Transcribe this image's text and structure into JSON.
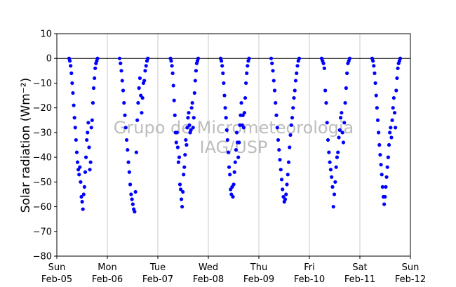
{
  "chart_data": {
    "type": "scatter",
    "ylabel": "Solar radiation (Wm⁻²)",
    "ylim": [
      -80,
      10
    ],
    "yticks": [
      10,
      0,
      -10,
      -20,
      -30,
      -40,
      -50,
      -60,
      -70,
      -80
    ],
    "xlim": [
      "2017-02-05 00:00",
      "2017-02-12 00:00"
    ],
    "xticks": [
      {
        "day": "Sun",
        "date": "Feb-05"
      },
      {
        "day": "Mon",
        "date": "Feb-06"
      },
      {
        "day": "Tue",
        "date": "Feb-07"
      },
      {
        "day": "Wed",
        "date": "Feb-08"
      },
      {
        "day": "Thu",
        "date": "Feb-09"
      },
      {
        "day": "Fri",
        "date": "Feb-10"
      },
      {
        "day": "Sat",
        "date": "Feb-11"
      },
      {
        "day": "Sun",
        "date": "Feb-12"
      }
    ],
    "grid": "vertical",
    "reference_line": 0,
    "marker_color": "#0000ff",
    "days": [
      {
        "date": "Feb-05",
        "sunrise": "05:50",
        "sunset": "19:20",
        "trough_time": "12:20",
        "trough": -61,
        "values": [
          0,
          -1,
          -3,
          -6,
          -10,
          -14,
          -19,
          -24,
          -28,
          -33,
          -38,
          -42,
          -45,
          -47,
          -44,
          -50,
          -56,
          -58,
          -61,
          -55,
          -52,
          -46,
          -40,
          -33,
          -30,
          -26,
          -36,
          -45,
          -42,
          -28,
          -25,
          -18,
          -12,
          -8,
          -4,
          -2,
          -1,
          0
        ]
      },
      {
        "date": "Feb-06",
        "sunrise": "05:50",
        "sunset": "19:15",
        "trough_time": "13:10",
        "trough": -62,
        "values": [
          0,
          -2,
          -5,
          -9,
          -13,
          -18,
          -23,
          -28,
          -33,
          -37,
          -42,
          -46,
          -51,
          -55,
          -57,
          -59,
          -61,
          -62,
          -54,
          -38,
          -25,
          -18,
          -12,
          -8,
          -15,
          -22,
          -16,
          -10,
          -9,
          -5,
          -3,
          -1,
          0
        ]
      },
      {
        "date": "Feb-07",
        "sunrise": "06:00",
        "sunset": "19:10",
        "trough_time": "12:40",
        "trough": -60,
        "values": [
          0,
          -1,
          -3,
          -6,
          -11,
          -17,
          -23,
          -30,
          -34,
          -30,
          -36,
          -42,
          -40,
          -51,
          -53,
          -57,
          -60,
          -54,
          -47,
          -44,
          -39,
          -33,
          -35,
          -28,
          -24,
          -22,
          -27,
          -30,
          -29,
          -20,
          -18,
          -28,
          -24,
          -14,
          -9,
          -5,
          -2,
          -1,
          0
        ]
      },
      {
        "date": "Feb-08",
        "sunrise": "05:50",
        "sunset": "19:20",
        "trough_time": "10:50",
        "trough": -56,
        "values": [
          0,
          -1,
          -3,
          -6,
          -10,
          -15,
          -20,
          -24,
          -29,
          -33,
          -38,
          -44,
          -47,
          -53,
          -55,
          -52,
          -56,
          -51,
          -46,
          -42,
          -37,
          -30,
          -34,
          -40,
          -34,
          -27,
          -23,
          -18,
          -27,
          -23,
          -28,
          -22,
          -16,
          -10,
          -6,
          -3,
          -1,
          0
        ]
      },
      {
        "date": "Feb-09",
        "sunrise": "05:50",
        "sunset": "19:10",
        "trough_time": "13:00",
        "trough": -58,
        "values": [
          0,
          -2,
          -5,
          -9,
          -13,
          -18,
          -23,
          -28,
          -33,
          -37,
          -41,
          -45,
          -49,
          -53,
          -56,
          -58,
          -57,
          -55,
          -51,
          -47,
          -42,
          -36,
          -31,
          -27,
          -24,
          -20,
          -16,
          -13,
          -9,
          -6,
          -3,
          -1,
          0
        ]
      },
      {
        "date": "Feb-10",
        "sunrise": "05:50",
        "sunset": "19:10",
        "trough_time": "11:50",
        "trough": -60,
        "values": [
          0,
          -1,
          -2,
          -4,
          -13,
          -18,
          -26,
          -33,
          -38,
          -42,
          -45,
          -48,
          -52,
          -60,
          -55,
          -50,
          -44,
          -40,
          -38,
          -32,
          -29,
          -24,
          -22,
          -30,
          -34,
          -26,
          -18,
          -12,
          -6,
          -2,
          -1,
          0
        ]
      },
      {
        "date": "Feb-11",
        "sunrise": "05:50",
        "sunset": "19:10",
        "trough_time": "12:20",
        "trough": -59,
        "values": [
          0,
          -1,
          -3,
          -6,
          -10,
          -15,
          -20,
          -25,
          -30,
          -35,
          -39,
          -43,
          -47,
          -52,
          -56,
          -59,
          -56,
          -52,
          -48,
          -44,
          -40,
          -35,
          -30,
          -28,
          -32,
          -25,
          -20,
          -16,
          -22,
          -28,
          -13,
          -8,
          -4,
          -2,
          -1,
          0
        ]
      }
    ],
    "watermark": [
      "Grupo de Micrometeorologia",
      "IAG/USP"
    ]
  }
}
